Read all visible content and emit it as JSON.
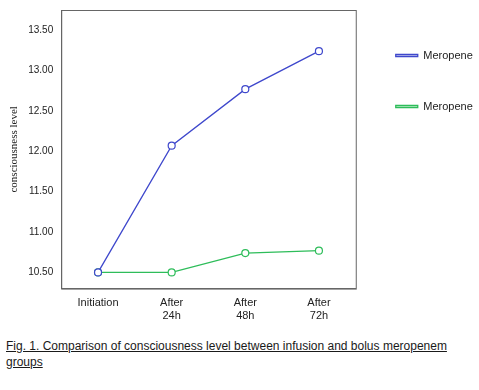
{
  "chart_data": {
    "type": "line",
    "caption": "Fig. 1. Comparison of consciousness level between infusion and bolus meropenem groups",
    "y_label": "consciousness level",
    "categories": [
      "Initiation",
      "After 24h",
      "After 48h",
      "After 72h"
    ],
    "series": [
      {
        "name": "Meropenem Infusion",
        "color": "#3f48cc",
        "marker": "circle",
        "values": [
          10.5,
          12.07,
          12.77,
          13.24
        ]
      },
      {
        "name": "Meropenem Bolus",
        "color": "#2ebd5a",
        "marker": "circle",
        "values": [
          10.5,
          10.5,
          10.74,
          10.77
        ]
      }
    ],
    "ylim": [
      10.3,
      13.75
    ],
    "yticks": [
      {
        "value": 10.5,
        "label": "10.50"
      },
      {
        "value": 11,
        "label": "11.00"
      },
      {
        "value": 11.5,
        "label": "11.50"
      },
      {
        "value": 12,
        "label": "12.00"
      },
      {
        "value": 12.5,
        "label": "12.50"
      },
      {
        "value": 13,
        "label": "13.00"
      },
      {
        "value": 13.5,
        "label": "13.50"
      }
    ],
    "grid": false,
    "legend": "right"
  }
}
